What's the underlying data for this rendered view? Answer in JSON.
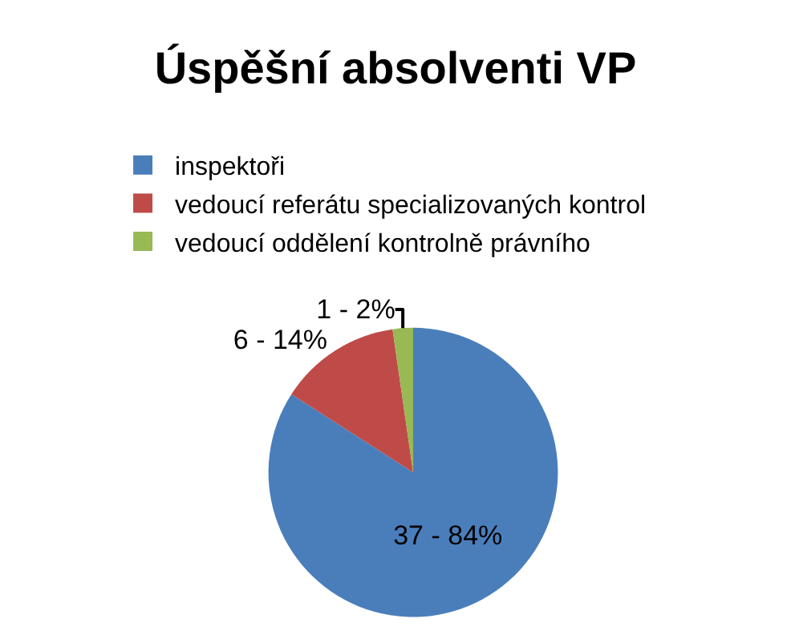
{
  "chart_data": {
    "type": "pie",
    "title": "Úspěšní absolventi VP",
    "categories": [
      "inspektoři",
      "vedoucí referátu specializovaných kontrol",
      "vedoucí oddělení kontrolně právního"
    ],
    "values": [
      37,
      6,
      1
    ],
    "colors": [
      "#4a7ebb",
      "#be4b48",
      "#98b954"
    ],
    "value_labels": [
      "37 - 84%",
      "6 - 14%",
      "1 - 2%"
    ],
    "legend": "top"
  }
}
